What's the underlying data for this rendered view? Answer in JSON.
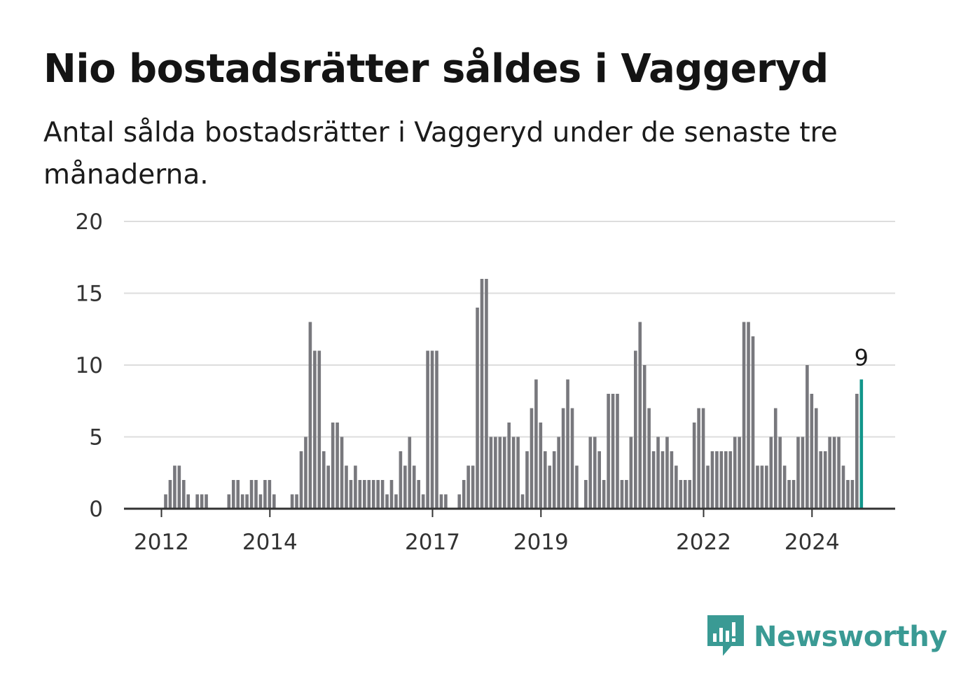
{
  "header": {
    "title": "Nio bostadsrätter såldes i Vaggeryd",
    "subtitle": "Antal sålda bostadsrätter i Vaggeryd under de senaste tre månaderna."
  },
  "logo": {
    "text": "Newsworthy",
    "icon": "newsworthy-chart-bubble-icon",
    "color": "#3a9a94"
  },
  "colors": {
    "bar": "#78787d",
    "highlight": "#12968b",
    "grid": "#dddddd",
    "axis": "#333333"
  },
  "chart_data": {
    "type": "bar",
    "ylim": [
      0,
      20
    ],
    "yticks": [
      "0",
      "5",
      "10",
      "15",
      "20"
    ],
    "xticks": [
      {
        "label": "2012",
        "index": 0
      },
      {
        "label": "2014",
        "index": 24
      },
      {
        "label": "2017",
        "index": 60
      },
      {
        "label": "2019",
        "index": 84
      },
      {
        "label": "2022",
        "index": 120
      },
      {
        "label": "2024",
        "index": 144
      }
    ],
    "start": "2012-01",
    "values": [
      1,
      2,
      3,
      3,
      2,
      1,
      0,
      1,
      1,
      1,
      0,
      0,
      0,
      0,
      1,
      2,
      2,
      1,
      1,
      2,
      2,
      1,
      2,
      2,
      1,
      0,
      0,
      0,
      1,
      1,
      4,
      5,
      13,
      11,
      11,
      4,
      3,
      6,
      6,
      5,
      3,
      2,
      3,
      2,
      2,
      2,
      2,
      2,
      2,
      1,
      2,
      1,
      4,
      3,
      5,
      3,
      2,
      1,
      11,
      11,
      11,
      1,
      1,
      0,
      0,
      1,
      2,
      3,
      3,
      14,
      16,
      16,
      5,
      5,
      5,
      5,
      6,
      5,
      5,
      1,
      4,
      7,
      9,
      6,
      4,
      3,
      4,
      5,
      7,
      9,
      7,
      3,
      0,
      2,
      5,
      5,
      4,
      2,
      8,
      8,
      8,
      2,
      2,
      5,
      11,
      13,
      10,
      7,
      4,
      5,
      4,
      5,
      4,
      3,
      2,
      2,
      2,
      6,
      7,
      7,
      3,
      4,
      4,
      4,
      4,
      4,
      5,
      5,
      13,
      13,
      12,
      3,
      3,
      3,
      5,
      7,
      5,
      3,
      2,
      2,
      5,
      5,
      10,
      8,
      7,
      4,
      4,
      5,
      5,
      5,
      3,
      2,
      2,
      8,
      9
    ],
    "highlight": {
      "index": 154,
      "value": 9,
      "label": "9"
    }
  }
}
